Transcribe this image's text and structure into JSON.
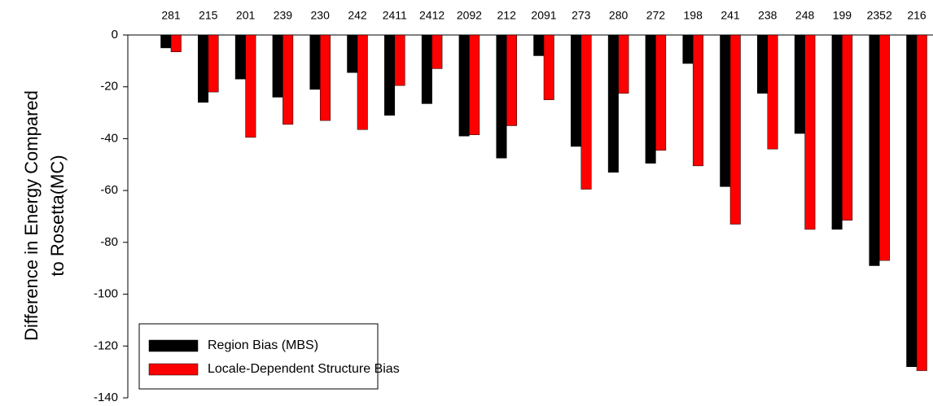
{
  "chart_data": {
    "type": "bar",
    "ylabel": [
      "Difference in Energy Compared",
      "to Rosetta(MC)"
    ],
    "categories": [
      "281",
      "215",
      "201",
      "239",
      "230",
      "242",
      "2411",
      "2412",
      "2092",
      "212",
      "2091",
      "273",
      "280",
      "272",
      "198",
      "241",
      "238",
      "248",
      "199",
      "2352",
      "216"
    ],
    "series": [
      {
        "name": "Region Bias (MBS)",
        "color": "#000000",
        "values": [
          -5,
          -26,
          -17,
          -24,
          -21,
          -14.5,
          -31,
          -26.5,
          -39,
          -47.5,
          -8,
          -43,
          -53,
          -49.5,
          -11,
          -58.5,
          -22.5,
          -38,
          -75,
          -89,
          -128
        ]
      },
      {
        "name": "Locale-Dependent Structure Bias",
        "color": "#ff0000",
        "values": [
          -6.5,
          -22,
          -39.5,
          -34.5,
          -33,
          -36.5,
          -19.5,
          -13,
          -38.5,
          -35,
          -25,
          -59.5,
          -22.5,
          -44.5,
          -50.5,
          -73,
          -44,
          -75,
          -71.5,
          -87,
          -129.5
        ]
      }
    ],
    "ylim": [
      -140,
      0
    ],
    "yticks": [
      0,
      -20,
      -40,
      -60,
      -80,
      -100,
      -120,
      -140
    ],
    "legend": "lower left"
  }
}
